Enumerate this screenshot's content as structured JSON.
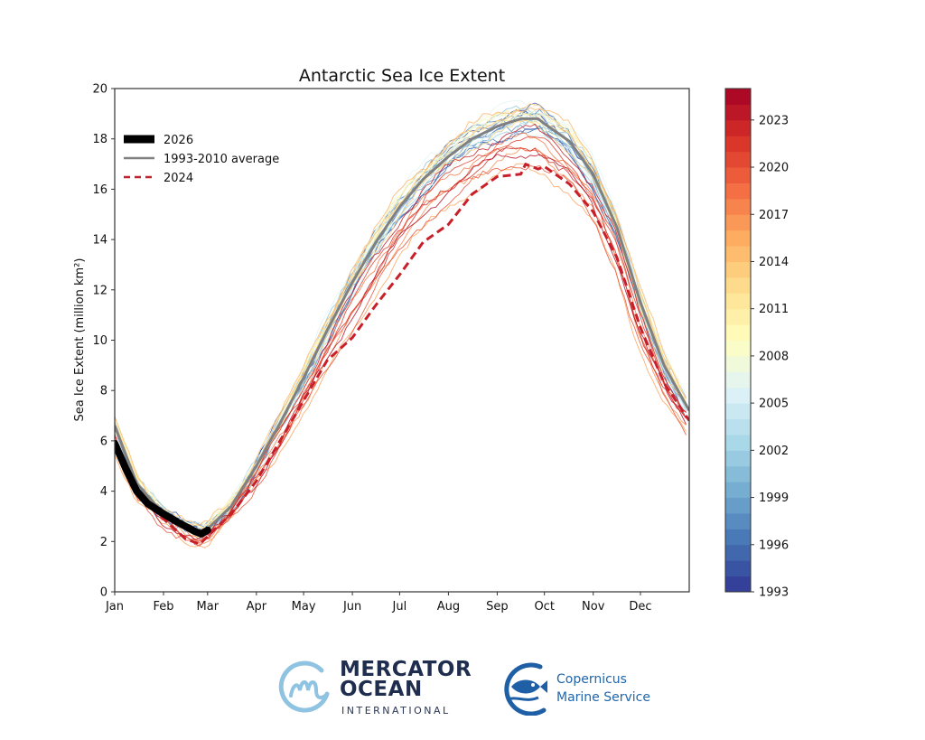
{
  "chart_data": {
    "type": "line",
    "title": "Antarctic Sea Ice Extent",
    "xlabel": "",
    "ylabel": "Sea Ice Extent (million km²)",
    "ylim": [
      0,
      20
    ],
    "xlim_day_of_year": [
      1,
      366
    ],
    "yticks": [
      0,
      2,
      4,
      6,
      8,
      10,
      12,
      14,
      16,
      18,
      20
    ],
    "xtick_labels": [
      "Jan",
      "Feb",
      "Mar",
      "Apr",
      "May",
      "Jun",
      "Jul",
      "Aug",
      "Sep",
      "Oct",
      "Nov",
      "Dec"
    ],
    "xtick_days": [
      1,
      32,
      60,
      91,
      121,
      152,
      182,
      213,
      244,
      274,
      305,
      335
    ],
    "grid": false,
    "legend_position": "upper-left",
    "legend": [
      {
        "label": "2026",
        "style": "thick-solid",
        "color": "#000000"
      },
      {
        "label": "1993-2010 average",
        "style": "solid",
        "color": "#808080"
      },
      {
        "label": "2024",
        "style": "dashed",
        "color": "#c8202a"
      }
    ],
    "colorbar": {
      "colormap": "RdYlBu_r",
      "range": [
        1993,
        2025
      ],
      "tick_labels": [
        "1993",
        "1996",
        "1999",
        "2002",
        "2005",
        "2008",
        "2011",
        "2014",
        "2017",
        "2020",
        "2023"
      ],
      "colors": [
        "#313695",
        "#4575b4",
        "#74add1",
        "#abd9e9",
        "#e0f3f8",
        "#ffffbf",
        "#fee090",
        "#fdae61",
        "#f46d43",
        "#d73027",
        "#a50026"
      ]
    },
    "series": [
      {
        "name": "2026",
        "day": [
          1,
          8,
          15,
          22,
          32,
          40,
          46,
          52,
          56,
          60
        ],
        "values": [
          5.9,
          4.9,
          4.0,
          3.5,
          3.1,
          2.8,
          2.6,
          2.4,
          2.3,
          2.45
        ]
      },
      {
        "name": "1993-2010 average",
        "day": [
          1,
          15,
          32,
          46,
          55,
          60,
          75,
          91,
          106,
          121,
          136,
          152,
          167,
          182,
          197,
          213,
          228,
          244,
          259,
          270,
          274,
          290,
          305,
          320,
          335,
          350,
          366
        ],
        "values": [
          6.6,
          4.3,
          3.1,
          2.6,
          2.4,
          2.5,
          3.4,
          5.0,
          6.7,
          8.5,
          10.4,
          12.3,
          13.9,
          15.3,
          16.4,
          17.3,
          18.0,
          18.5,
          18.8,
          18.8,
          18.6,
          17.9,
          16.6,
          14.5,
          11.5,
          9.0,
          7.2
        ]
      },
      {
        "name": "2024",
        "day": [
          1,
          15,
          32,
          46,
          55,
          60,
          75,
          91,
          106,
          121,
          136,
          152,
          167,
          182,
          197,
          213,
          228,
          244,
          259,
          262,
          270,
          274,
          290,
          305,
          320,
          335,
          350,
          366
        ],
        "values": [
          5.9,
          3.9,
          2.9,
          2.1,
          1.9,
          2.2,
          3.1,
          4.4,
          6.0,
          7.6,
          9.2,
          10.1,
          11.4,
          12.6,
          13.9,
          14.6,
          15.8,
          16.5,
          16.6,
          17.0,
          16.8,
          16.9,
          16.2,
          15.1,
          13.3,
          10.5,
          8.3,
          6.8
        ]
      }
    ]
  },
  "logos": {
    "mercator_line1": "MERCATOR",
    "mercator_line2": "OCEAN",
    "mercator_sub": "INTERNATIONAL",
    "copernicus_line1": "Copernicus",
    "copernicus_line2": "Marine Service"
  }
}
